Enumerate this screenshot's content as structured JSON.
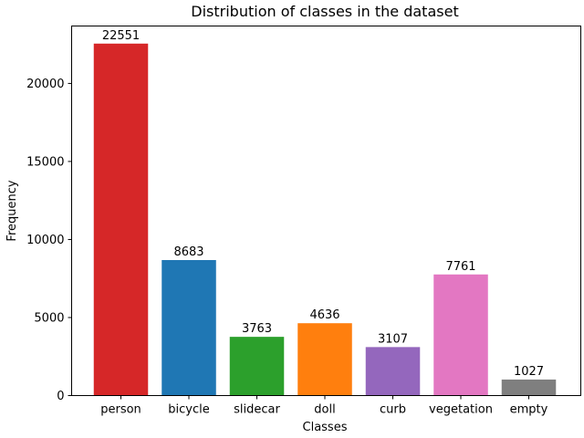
{
  "chart_data": {
    "type": "bar",
    "title": "Distribution of classes in the dataset",
    "xlabel": "Classes",
    "ylabel": "Frequency",
    "categories": [
      "person",
      "bicycle",
      "slidecar",
      "doll",
      "curb",
      "vegetation",
      "empty"
    ],
    "values": [
      22551,
      8683,
      3763,
      4636,
      3107,
      7761,
      1027
    ],
    "colors": [
      "#d62728",
      "#1f77b4",
      "#2ca02c",
      "#ff7f0e",
      "#9467bd",
      "#e377c2",
      "#7f7f7f"
    ],
    "ylim": [
      0,
      23678.55
    ],
    "yticks": [
      0,
      5000,
      10000,
      15000,
      20000
    ],
    "grid": false,
    "legend": "none"
  }
}
